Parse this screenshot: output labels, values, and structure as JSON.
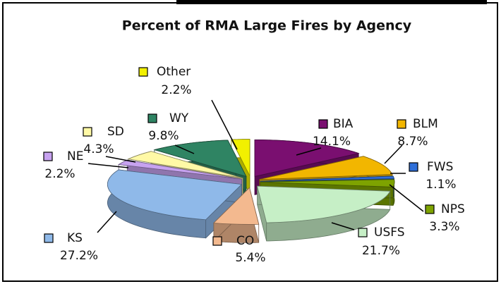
{
  "chart_data": {
    "type": "pie",
    "title": "Percent of RMA Large Fires by Agency",
    "categories": [
      "BIA",
      "BLM",
      "FWS",
      "NPS",
      "USFS",
      "CO",
      "KS",
      "NE",
      "SD",
      "WY",
      "Other"
    ],
    "values": [
      14.1,
      8.7,
      1.1,
      3.3,
      21.7,
      5.4,
      27.2,
      2.2,
      4.3,
      9.8,
      2.2
    ],
    "value_labels": [
      "14.1%",
      "8.7%",
      "1.1%",
      "3.3%",
      "21.7%",
      "5.4%",
      "27.2%",
      "2.2%",
      "4.3%",
      "9.8%",
      "2.2%"
    ],
    "colors": [
      "#7a0f70",
      "#f2b600",
      "#2f6fd8",
      "#7ea300",
      "#c6efc6",
      "#f3b98f",
      "#8fb9e9",
      "#c7a2f0",
      "#fff9a6",
      "#2f8463",
      "#f2f000"
    ]
  }
}
